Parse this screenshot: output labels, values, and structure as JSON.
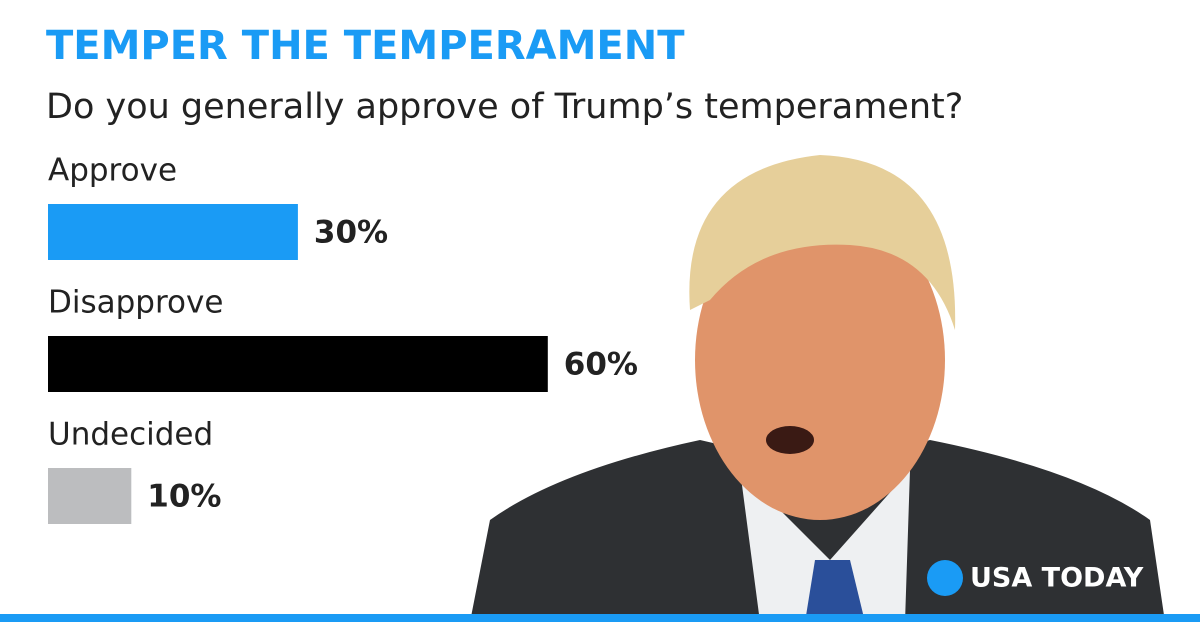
{
  "chart_data": {
    "type": "bar",
    "title": "TEMPER THE TEMPERAMENT",
    "subtitle": "Do you generally approve of Trump’s temperament?",
    "categories": [
      "Approve",
      "Disapprove",
      "Undecided"
    ],
    "values": [
      30,
      60,
      10
    ],
    "value_labels": [
      "30%",
      "60%",
      "10%"
    ],
    "colors": [
      "#1a9bf5",
      "#000000",
      "#bcbdbf"
    ],
    "source": "USA TODAY"
  }
}
